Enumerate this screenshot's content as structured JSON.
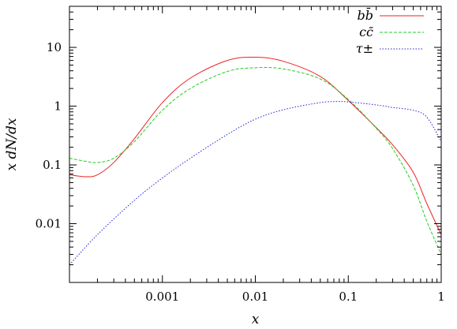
{
  "chart_data": {
    "type": "line",
    "xlabel": "x",
    "ylabel": "x dN/dx",
    "xscale": "log",
    "yscale": "log",
    "xlim": [
      0.0001,
      1
    ],
    "ylim": [
      0.001,
      50
    ],
    "grid": false,
    "legend_position": "top-right",
    "x_ticks": [
      {
        "value": 0.001,
        "label": "0.001"
      },
      {
        "value": 0.01,
        "label": "0.01"
      },
      {
        "value": 0.1,
        "label": "0.1"
      },
      {
        "value": 1,
        "label": "1"
      }
    ],
    "y_ticks": [
      {
        "value": 0.01,
        "label": "0.01"
      },
      {
        "value": 0.1,
        "label": "0.1"
      },
      {
        "value": 1,
        "label": "1"
      },
      {
        "value": 10,
        "label": "10"
      }
    ],
    "series": [
      {
        "name": "bb̄",
        "color": "#ee2222",
        "dash": "solid",
        "x": [
          0.0001,
          0.00015,
          0.0002,
          0.0003,
          0.0005,
          0.001,
          0.002,
          0.005,
          0.01,
          0.02,
          0.05,
          0.1,
          0.2,
          0.3,
          0.5,
          0.7,
          1.0
        ],
        "y": [
          0.068,
          0.063,
          0.068,
          0.11,
          0.28,
          1.15,
          3.0,
          6.0,
          6.8,
          5.8,
          3.2,
          1.25,
          0.43,
          0.22,
          0.075,
          0.022,
          0.0065
        ]
      },
      {
        "name": "cc̄",
        "color": "#22cc22",
        "dash": "dashed",
        "x": [
          0.0001,
          0.00015,
          0.0002,
          0.0003,
          0.0005,
          0.001,
          0.002,
          0.005,
          0.01,
          0.02,
          0.05,
          0.1,
          0.2,
          0.3,
          0.5,
          0.7,
          1.0
        ],
        "y": [
          0.13,
          0.115,
          0.11,
          0.13,
          0.25,
          0.85,
          2.0,
          3.9,
          4.5,
          4.3,
          2.9,
          1.3,
          0.42,
          0.19,
          0.045,
          0.011,
          0.003
        ]
      },
      {
        "name": "τ±",
        "color": "#2222dd",
        "dash": "dotted",
        "x": [
          0.0001,
          0.0002,
          0.0005,
          0.001,
          0.002,
          0.005,
          0.01,
          0.02,
          0.05,
          0.08,
          0.1,
          0.2,
          0.3,
          0.5,
          0.7,
          1.0
        ],
        "y": [
          0.002,
          0.0065,
          0.025,
          0.06,
          0.13,
          0.33,
          0.6,
          0.87,
          1.15,
          1.2,
          1.18,
          1.05,
          0.95,
          0.85,
          0.65,
          0.25
        ]
      }
    ]
  }
}
